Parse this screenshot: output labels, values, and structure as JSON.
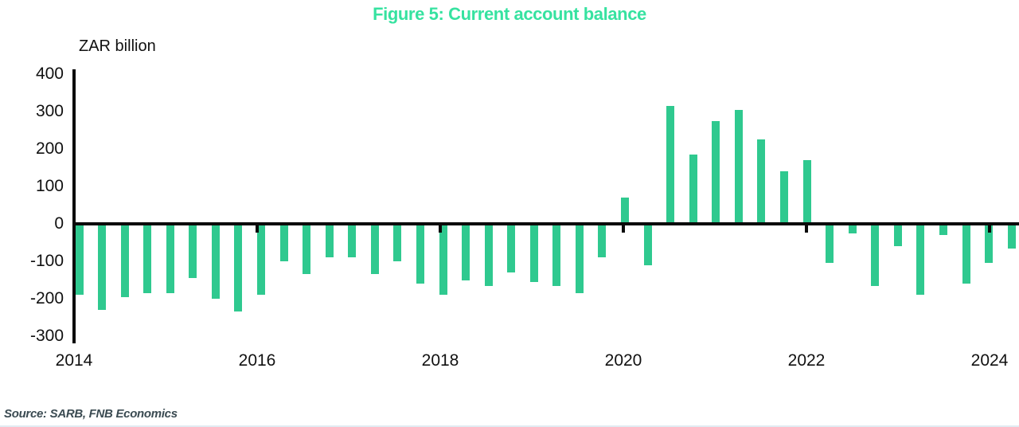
{
  "title": "Figure 5: Current account balance",
  "y_axis_label": "ZAR billion",
  "source": "Source: SARB, FNB Economics",
  "colors": {
    "title_green": "#36e2a0",
    "bar_green": "#2fc98f",
    "axis_black": "#0a0a0a",
    "source_text": "#3b4b52"
  },
  "chart_data": {
    "type": "bar",
    "title": "Figure 5: Current account balance",
    "xlabel": "",
    "ylabel": "ZAR billion",
    "ylim": [
      -300,
      400
    ],
    "yticks": [
      400,
      300,
      200,
      100,
      0,
      -100,
      -200,
      -300
    ],
    "xticks": [
      2014,
      2016,
      2018,
      2020,
      2022,
      2024
    ],
    "grid": false,
    "legend": false,
    "bar_color": "#2fc98f",
    "x": [
      "2014 Q1",
      "2014 Q2",
      "2014 Q3",
      "2014 Q4",
      "2015 Q1",
      "2015 Q2",
      "2015 Q3",
      "2015 Q4",
      "2016 Q1",
      "2016 Q2",
      "2016 Q3",
      "2016 Q4",
      "2017 Q1",
      "2017 Q2",
      "2017 Q3",
      "2017 Q4",
      "2018 Q1",
      "2018 Q2",
      "2018 Q3",
      "2018 Q4",
      "2019 Q1",
      "2019 Q2",
      "2019 Q3",
      "2019 Q4",
      "2020 Q1",
      "2020 Q2",
      "2020 Q3",
      "2020 Q4",
      "2021 Q1",
      "2021 Q2",
      "2021 Q3",
      "2021 Q4",
      "2022 Q1",
      "2022 Q2",
      "2022 Q3",
      "2022 Q4",
      "2023 Q1",
      "2023 Q2",
      "2023 Q3",
      "2023 Q4",
      "2024 Q1",
      "2024 Q2"
    ],
    "values": [
      -190,
      -230,
      -195,
      -185,
      -185,
      -145,
      -200,
      -235,
      -190,
      -100,
      -135,
      -90,
      -90,
      -135,
      -100,
      -160,
      -190,
      -150,
      -165,
      -130,
      -155,
      -165,
      -185,
      -90,
      70,
      -110,
      315,
      185,
      275,
      305,
      225,
      140,
      170,
      -105,
      -25,
      -165,
      -60,
      -190,
      -30,
      -160,
      -105,
      -65
    ]
  }
}
